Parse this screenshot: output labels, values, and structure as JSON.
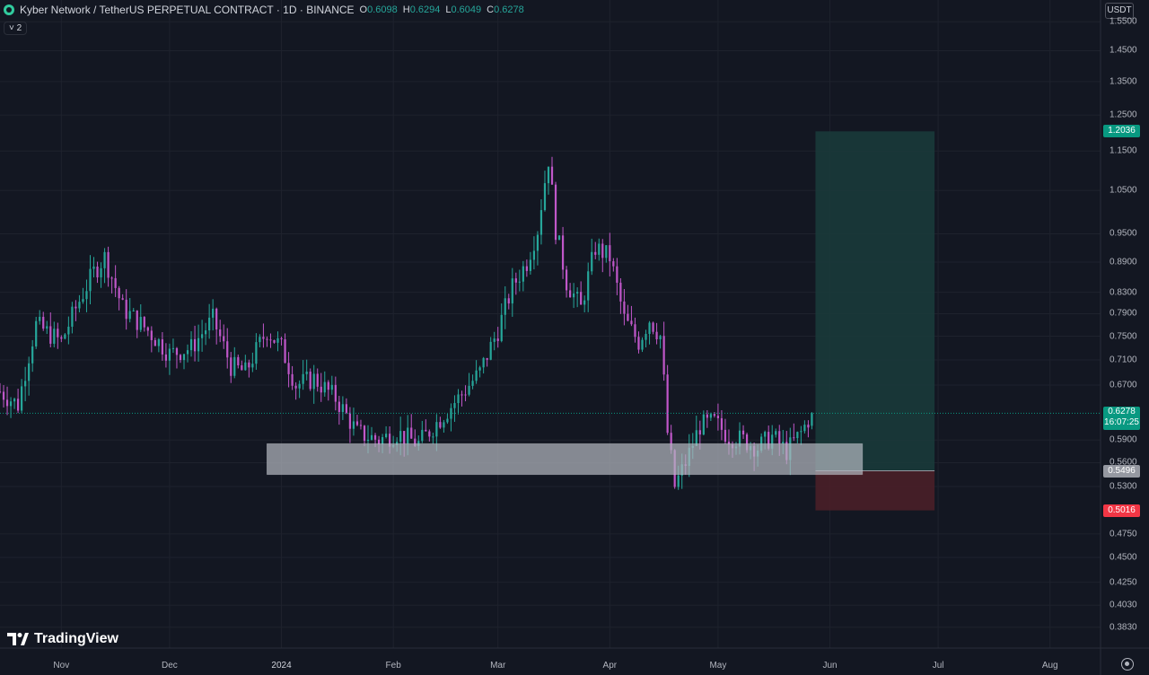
{
  "header": {
    "title": "Kyber Network / TetherUS PERPETUAL CONTRACT · 1D · BINANCE",
    "ohlc": [
      {
        "k": "O",
        "v": "0.6098"
      },
      {
        "k": "H",
        "v": "0.6294"
      },
      {
        "k": "L",
        "v": "0.6049"
      },
      {
        "k": "C",
        "v": "0.6278"
      }
    ],
    "indicator_toggle": "˅ 2"
  },
  "currency_button": "USDT",
  "branding": {
    "logo_text": "TradingView"
  },
  "colors": {
    "background": "#131722",
    "up": "#26a69a",
    "down": "#c057c9",
    "profit_zone": "#1a3a3a",
    "loss_zone": "#4a1f28",
    "support_zone": "#b2b5be",
    "current_price": "#089981",
    "stop_price": "#f23645",
    "entry_price": "#9598a1"
  },
  "price_badges": {
    "target": "1.2036",
    "current": "0.6278",
    "countdown": "16:07:25",
    "entry": "0.5496",
    "stop": "0.5016"
  },
  "chart_data": {
    "type": "candlestick",
    "title": "Kyber Network / TetherUS PERPETUAL CONTRACT · 1D · BINANCE",
    "y_scale": "log",
    "ylim": [
      0.365,
      1.63
    ],
    "y_ticks": [
      "1.5500",
      "1.4500",
      "1.3500",
      "1.2500",
      "1.1500",
      "1.0500",
      "0.9500",
      "0.8900",
      "0.8300",
      "0.7900",
      "0.7500",
      "0.7100",
      "0.6700",
      "0.5900",
      "0.5600",
      "0.5300",
      "0.4750",
      "0.4500",
      "0.4250",
      "0.4030",
      "0.3830"
    ],
    "x_ticks": [
      "Nov",
      "Dec",
      "2024",
      "Feb",
      "Mar",
      "Apr",
      "May",
      "Jun",
      "Jul",
      "Aug"
    ],
    "x_range": [
      "2023-10-15",
      "2024-08-15"
    ],
    "price_path": [
      {
        "date": "2023-10-15",
        "close": 0.66
      },
      {
        "date": "2023-10-20",
        "close": 0.64
      },
      {
        "date": "2023-10-25",
        "close": 0.77
      },
      {
        "date": "2023-11-01",
        "close": 0.74
      },
      {
        "date": "2023-11-05",
        "close": 0.8
      },
      {
        "date": "2023-11-10",
        "close": 0.87
      },
      {
        "date": "2023-11-13",
        "close": 0.9
      },
      {
        "date": "2023-11-18",
        "close": 0.8
      },
      {
        "date": "2023-11-25",
        "close": 0.76
      },
      {
        "date": "2023-12-01",
        "close": 0.72
      },
      {
        "date": "2023-12-07",
        "close": 0.73
      },
      {
        "date": "2023-12-13",
        "close": 0.78
      },
      {
        "date": "2023-12-18",
        "close": 0.7
      },
      {
        "date": "2023-12-22",
        "close": 0.69
      },
      {
        "date": "2023-12-28",
        "close": 0.76
      },
      {
        "date": "2024-01-01",
        "close": 0.73
      },
      {
        "date": "2024-01-05",
        "close": 0.67
      },
      {
        "date": "2024-01-10",
        "close": 0.68
      },
      {
        "date": "2024-01-16",
        "close": 0.65
      },
      {
        "date": "2024-01-22",
        "close": 0.6
      },
      {
        "date": "2024-01-28",
        "close": 0.59
      },
      {
        "date": "2024-02-02",
        "close": 0.6
      },
      {
        "date": "2024-02-08",
        "close": 0.585
      },
      {
        "date": "2024-02-14",
        "close": 0.62
      },
      {
        "date": "2024-02-19",
        "close": 0.65
      },
      {
        "date": "2024-02-25",
        "close": 0.69
      },
      {
        "date": "2024-03-01",
        "close": 0.76
      },
      {
        "date": "2024-03-05",
        "close": 0.84
      },
      {
        "date": "2024-03-09",
        "close": 0.89
      },
      {
        "date": "2024-03-12",
        "close": 0.96
      },
      {
        "date": "2024-03-15",
        "close": 1.13
      },
      {
        "date": "2024-03-17",
        "close": 0.96
      },
      {
        "date": "2024-03-20",
        "close": 0.85
      },
      {
        "date": "2024-03-24",
        "close": 0.8
      },
      {
        "date": "2024-03-28",
        "close": 0.92
      },
      {
        "date": "2024-04-01",
        "close": 0.9
      },
      {
        "date": "2024-04-05",
        "close": 0.78
      },
      {
        "date": "2024-04-09",
        "close": 0.74
      },
      {
        "date": "2024-04-12",
        "close": 0.78
      },
      {
        "date": "2024-04-15",
        "close": 0.75
      },
      {
        "date": "2024-04-17",
        "close": 0.6
      },
      {
        "date": "2024-04-19",
        "close": 0.53
      },
      {
        "date": "2024-04-22",
        "close": 0.56
      },
      {
        "date": "2024-04-26",
        "close": 0.61
      },
      {
        "date": "2024-04-30",
        "close": 0.615
      },
      {
        "date": "2024-05-04",
        "close": 0.595
      },
      {
        "date": "2024-05-08",
        "close": 0.59
      },
      {
        "date": "2024-05-12",
        "close": 0.58
      },
      {
        "date": "2024-05-16",
        "close": 0.595
      },
      {
        "date": "2024-05-20",
        "close": 0.575
      },
      {
        "date": "2024-05-24",
        "close": 0.6
      },
      {
        "date": "2024-05-27",
        "close": 0.6278
      }
    ],
    "support_zone": {
      "from": "2023-12-28",
      "to": "2024-06-10",
      "low": 0.545,
      "high": 0.585
    },
    "long_position": {
      "from": "2024-05-28",
      "to": "2024-06-30",
      "entry": 0.5496,
      "target": 1.2036,
      "stop": 0.5016
    },
    "current_price": 0.6278
  }
}
